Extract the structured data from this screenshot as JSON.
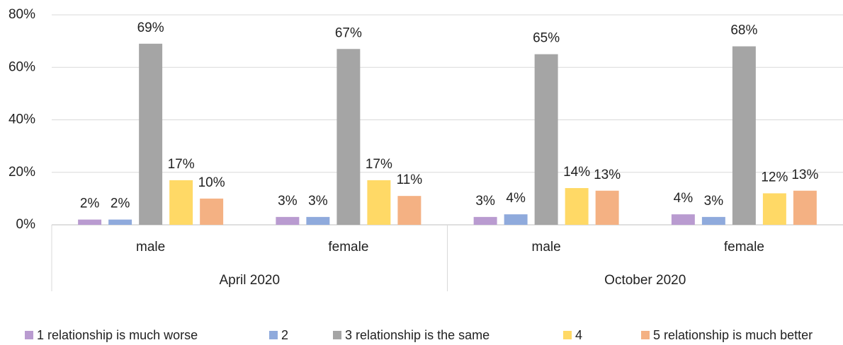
{
  "chart_data": {
    "type": "bar",
    "categories": [
      "male",
      "female",
      "male",
      "female"
    ],
    "groups": [
      "April 2020",
      "October 2020"
    ],
    "series": [
      {
        "name": "1 relationship is much worse",
        "color": "#b99bd0",
        "values": [
          2,
          3,
          3,
          4
        ],
        "value_labels": [
          "2%",
          "3%",
          "3%",
          "4%"
        ]
      },
      {
        "name": "2",
        "color": "#8faadc",
        "values": [
          2,
          3,
          4,
          3
        ],
        "value_labels": [
          "2%",
          "3%",
          "4%",
          "3%"
        ]
      },
      {
        "name": "3 relationship is the same",
        "color": "#a5a5a5",
        "values": [
          69,
          67,
          65,
          68
        ],
        "value_labels": [
          "69%",
          "67%",
          "65%",
          "68%"
        ]
      },
      {
        "name": "4",
        "color": "#ffd966",
        "values": [
          17,
          17,
          14,
          12
        ],
        "value_labels": [
          "17%",
          "17%",
          "14%",
          "12%"
        ]
      },
      {
        "name": "5 relationship is much better",
        "color": "#f4b183",
        "values": [
          10,
          11,
          13,
          13
        ],
        "value_labels": [
          "10%",
          "11%",
          "13%",
          "13%"
        ]
      }
    ],
    "ylim": [
      0,
      80
    ],
    "yticks": [
      {
        "value": 0,
        "label": "0%"
      },
      {
        "value": 20,
        "label": "20%"
      },
      {
        "value": 40,
        "label": "40%"
      },
      {
        "value": 60,
        "label": "60%"
      },
      {
        "value": 80,
        "label": "80%"
      }
    ],
    "grid": true,
    "legend": "bottom"
  }
}
